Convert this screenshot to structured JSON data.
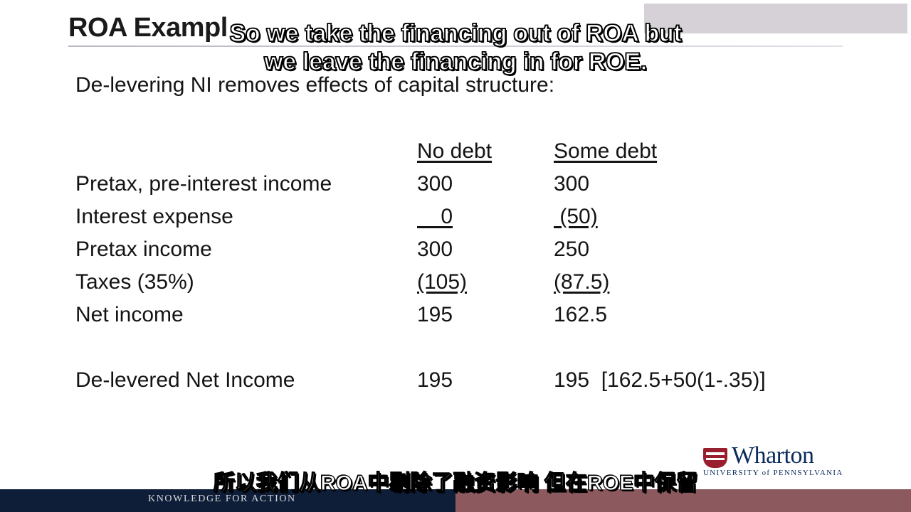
{
  "slide": {
    "title": "ROA Exampl",
    "subtitle": "De-levering NI removes effects of capital structure:",
    "columns": [
      "No debt",
      "Some debt"
    ],
    "rows": [
      {
        "label": "Pretax, pre-interest income",
        "no_debt": "300",
        "some_debt": "300"
      },
      {
        "label": "Interest expense",
        "no_debt": "    0",
        "some_debt": " (50)"
      },
      {
        "label": "Pretax income",
        "no_debt": "300",
        "some_debt": "250"
      },
      {
        "label": "Taxes (35%)",
        "no_debt": "(105)",
        "some_debt": "(87.5)"
      },
      {
        "label": "Net income",
        "no_debt": "195",
        "some_debt": "162.5"
      }
    ],
    "delevered": {
      "label": "De-levered Net Income",
      "no_debt": "195",
      "some_debt": "195  [162.5+50(1-.35)]"
    }
  },
  "logo": {
    "word": "Wharton",
    "sub": "UNIVERSITY of PENNSYLVANIA"
  },
  "footer": {
    "tagline": "KNOWLEDGE FOR ACTION"
  },
  "subtitles": {
    "en_line1": "So we take the financing out of ROA but",
    "en_line2": "we leave the financing in for ROE.",
    "zh": "所以我们从ROA中剔除了融资影响 但在ROE中保留"
  },
  "colors": {
    "footer_navy": "#0f1e38",
    "footer_mauve": "#8c5a5e",
    "logo_red": "#9a1f2e",
    "logo_blue": "#0b2a5b"
  }
}
